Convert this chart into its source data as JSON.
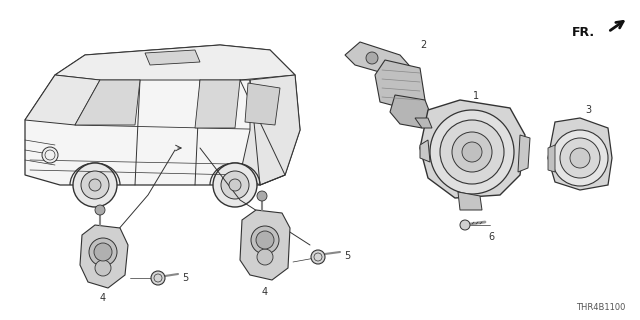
{
  "bg_color": "#ffffff",
  "fig_width": 6.4,
  "fig_height": 3.2,
  "dpi": 100,
  "diagram_code": "THR4B1100",
  "fr_label": "FR.",
  "text_color": "#222222",
  "line_color": "#333333",
  "label_fontsize": 7,
  "code_fontsize": 6,
  "van": {
    "body_color": "#ffffff",
    "line_color": "#333333",
    "line_width": 0.8
  }
}
